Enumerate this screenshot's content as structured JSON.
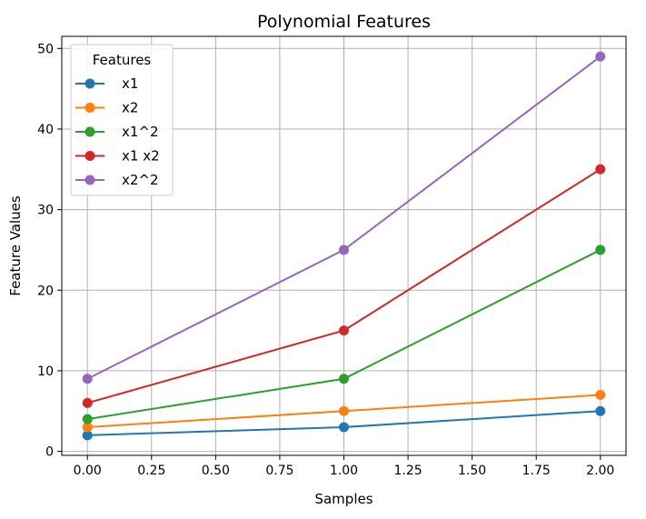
{
  "chart_data": {
    "type": "line",
    "title": "Polynomial Features",
    "xlabel": "Samples",
    "ylabel": "Feature Values",
    "xlim": [
      -0.1,
      2.1
    ],
    "ylim": [
      -0.5,
      51.5
    ],
    "x": [
      0,
      1,
      2
    ],
    "x_ticks": [
      0,
      0.25,
      0.5,
      0.75,
      1.0,
      1.25,
      1.5,
      1.75,
      2.0
    ],
    "x_tick_labels": [
      "0.00",
      "0.25",
      "0.50",
      "0.75",
      "1.00",
      "1.25",
      "1.50",
      "1.75",
      "2.00"
    ],
    "y_ticks": [
      0,
      10,
      20,
      30,
      40,
      50
    ],
    "y_tick_labels": [
      "0",
      "10",
      "20",
      "30",
      "40",
      "50"
    ],
    "grid": true,
    "legend": {
      "title": "Features",
      "placement": "top-left"
    },
    "series": [
      {
        "name": "x1",
        "values": [
          2,
          3,
          5
        ],
        "color": "#1f77b4"
      },
      {
        "name": "x2",
        "values": [
          3,
          5,
          7
        ],
        "color": "#ff7f0e"
      },
      {
        "name": "x1^2",
        "values": [
          4,
          9,
          25
        ],
        "color": "#2ca02c"
      },
      {
        "name": "x1 x2",
        "values": [
          6,
          15,
          35
        ],
        "color": "#d62728"
      },
      {
        "name": "x2^2",
        "values": [
          9,
          25,
          49
        ],
        "color": "#9467bd"
      }
    ]
  }
}
